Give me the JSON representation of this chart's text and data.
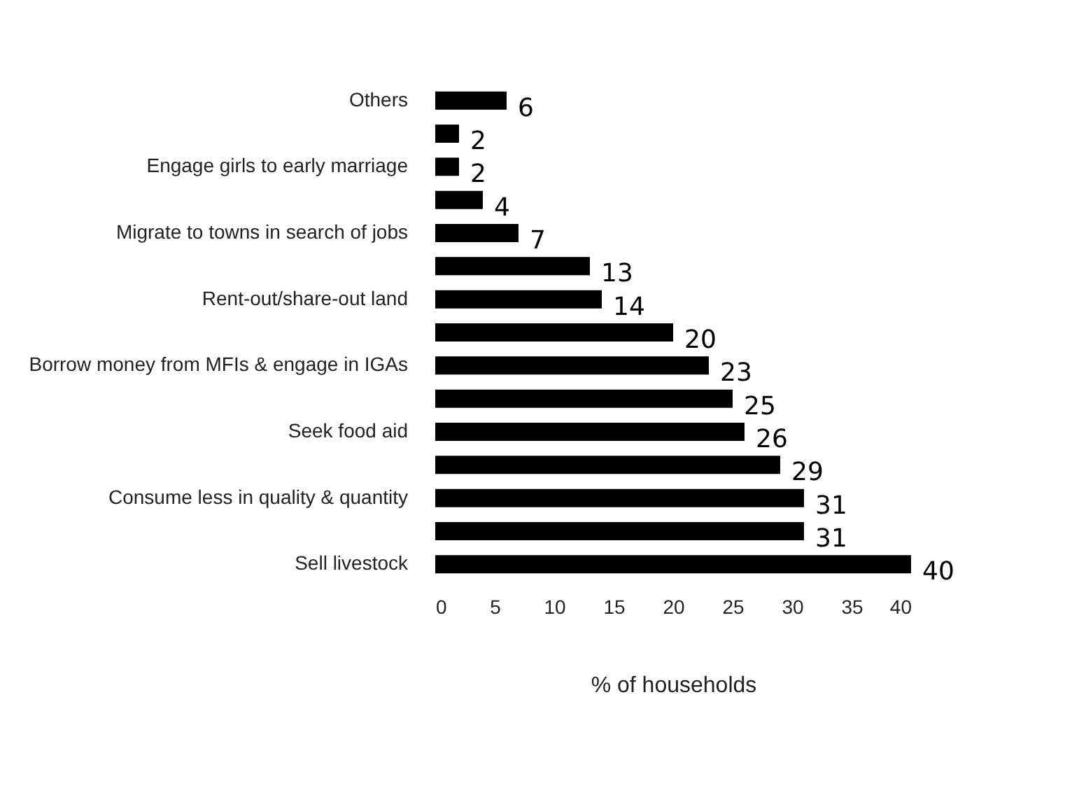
{
  "chart_data": {
    "type": "bar",
    "orientation": "horizontal",
    "xlabel": "% of households",
    "categories": [
      "Others",
      null,
      "Engage girls to early marriage",
      null,
      "Migrate to towns in search of jobs",
      null,
      "Rent-out/share-out land",
      null,
      "Borrow money from MFIs & engage in IGAs",
      null,
      "Seek food aid",
      null,
      "Consume less in quality & quantity",
      null,
      "Sell livestock"
    ],
    "values": [
      6,
      2,
      2,
      4,
      7,
      13,
      14,
      20,
      23,
      25,
      26,
      29,
      31,
      31,
      40
    ],
    "color": "#000000",
    "xlim": [
      0,
      40
    ],
    "xticks": [
      0,
      5,
      10,
      15,
      20,
      25,
      30,
      35,
      40
    ],
    "data_labels": true,
    "grid": false
  }
}
